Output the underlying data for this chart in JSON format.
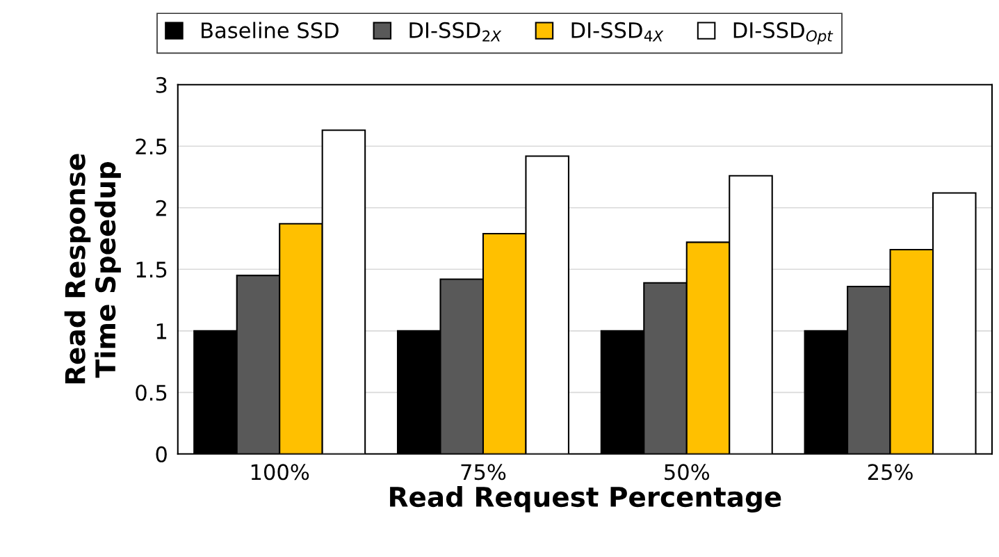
{
  "chart_data": {
    "type": "bar",
    "xlabel": "Read Request Percentage",
    "ylabel": "Read Response\nTime Speedup",
    "categories": [
      "100%",
      "75%",
      "50%",
      "25%"
    ],
    "series": [
      {
        "name": "Baseline SSD",
        "color": "#000000",
        "values": [
          1,
          1,
          1,
          1
        ]
      },
      {
        "name": "DI-SSD$_{2X}$",
        "color": "#595959",
        "values": [
          1.45,
          1.42,
          1.39,
          1.36
        ]
      },
      {
        "name": "DI-SSD$_{4X}$",
        "color": "#ffc000",
        "values": [
          1.87,
          1.79,
          1.72,
          1.66
        ]
      },
      {
        "name": "DI-SSD$_{Opt}$",
        "color": "#ffffff",
        "values": [
          2.63,
          2.42,
          2.26,
          2.12
        ]
      }
    ],
    "ylim": [
      0,
      3
    ],
    "yticks": [
      0,
      0.5,
      1,
      1.5,
      2,
      2.5,
      3
    ],
    "grid": "y",
    "legend": "top"
  }
}
